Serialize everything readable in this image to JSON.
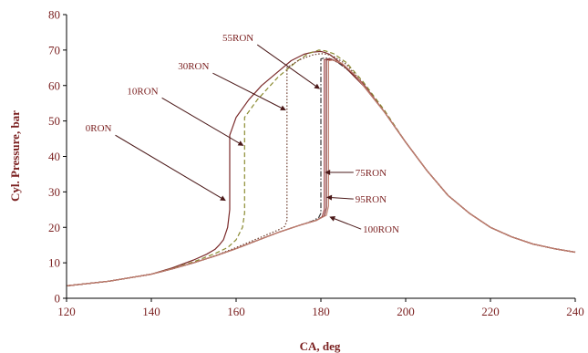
{
  "chart_data": {
    "type": "line",
    "title": "",
    "xlabel": "CA, deg",
    "ylabel": "Cyl. Pressure, bar",
    "xlim": [
      120,
      240
    ],
    "ylim": [
      0,
      80
    ],
    "xticks": [
      120,
      140,
      160,
      180,
      200,
      220,
      240
    ],
    "yticks": [
      0,
      10,
      20,
      30,
      40,
      50,
      60,
      70,
      80
    ],
    "grid": false,
    "legend": "none",
    "colors": {
      "text": "#7a1f1f",
      "axis": "#000000",
      "arrow": "#4a1818",
      "curve_dark": "#7a2a2a",
      "curve_mid": "#a04a4a",
      "curve_light": "#c08070",
      "curve_dash": "#8a8a30"
    },
    "series": [
      {
        "label": "0RON",
        "style": "solid",
        "color": "#7a2a2a",
        "x": [
          120,
          130,
          140,
          145,
          150,
          153,
          155,
          156,
          157,
          158,
          158.5,
          158.5,
          160,
          163,
          166,
          170,
          173,
          176,
          178,
          180,
          181,
          182,
          185,
          190,
          195,
          200,
          205,
          210,
          215,
          220,
          225,
          230,
          235,
          240
        ],
        "y": [
          3.5,
          4.8,
          6.8,
          8.6,
          10.8,
          12.4,
          13.8,
          15,
          16.5,
          20,
          25,
          46,
          51,
          56,
          60,
          64,
          67,
          68.8,
          69.4,
          69.6,
          69.3,
          68.8,
          66,
          60,
          52.5,
          44,
          36,
          29,
          24,
          20,
          17.3,
          15.3,
          14,
          13
        ]
      },
      {
        "label": "10RON",
        "style": "dashed",
        "color": "#8a8a30",
        "x": [
          120,
          130,
          140,
          145,
          150,
          155,
          158,
          160,
          161.5,
          162,
          162,
          165,
          170,
          174,
          177,
          179.5,
          181,
          183,
          186,
          190,
          195,
          200,
          205,
          210,
          215,
          220,
          225,
          230,
          235,
          240
        ],
        "y": [
          3.5,
          4.8,
          6.8,
          8.4,
          10.3,
          12.6,
          14.3,
          16.5,
          20,
          24,
          51,
          56,
          62.5,
          66.5,
          69,
          70,
          69.8,
          69,
          66.5,
          61,
          53,
          44,
          36,
          29,
          24,
          20,
          17.3,
          15.3,
          14,
          13
        ]
      },
      {
        "label": "30RON",
        "style": "dotted",
        "color": "#6a3a2a",
        "x": [
          120,
          130,
          140,
          145,
          150,
          155,
          160,
          165,
          168,
          170,
          171.5,
          172,
          172,
          175,
          178,
          180,
          181.5,
          183,
          186,
          190,
          195,
          200,
          205,
          210,
          215,
          220,
          225,
          230,
          235,
          240
        ],
        "y": [
          3.5,
          4.8,
          6.8,
          8.3,
          10,
          12,
          14.3,
          16.8,
          18.3,
          19.3,
          20.3,
          22,
          65,
          67.3,
          68.6,
          69,
          68.8,
          68.2,
          66,
          60.5,
          52.5,
          44,
          36,
          29,
          24,
          20,
          17.3,
          15.3,
          14,
          13
        ]
      },
      {
        "label": "55RON",
        "style": "dashdot",
        "color": "#3a3a3a",
        "x": [
          120,
          130,
          140,
          145,
          150,
          155,
          160,
          165,
          170,
          175,
          178,
          179.5,
          180,
          180,
          181,
          182,
          184,
          187,
          190,
          195,
          200,
          205,
          210,
          215,
          220,
          225,
          230,
          235,
          240
        ],
        "y": [
          3.5,
          4.8,
          6.8,
          8.3,
          10,
          11.9,
          14,
          16.3,
          18.6,
          20.6,
          21.8,
          22.8,
          24,
          67.5,
          67.8,
          67.6,
          66.5,
          63.8,
          60.5,
          52.5,
          44,
          36,
          29,
          24,
          20,
          17.3,
          15.3,
          14,
          13
        ]
      },
      {
        "label": "75RON",
        "style": "solid",
        "color": "#a04a4a",
        "x": [
          120,
          130,
          140,
          145,
          150,
          155,
          160,
          165,
          170,
          175,
          179,
          180.3,
          180.8,
          180.8,
          182,
          184,
          187,
          190,
          195,
          200,
          205,
          210,
          215,
          220,
          225,
          230,
          235,
          240
        ],
        "y": [
          3.5,
          4.8,
          6.8,
          8.3,
          10,
          11.9,
          14,
          16.3,
          18.6,
          20.6,
          22,
          23,
          25,
          67.3,
          67.6,
          66.8,
          64,
          60.5,
          52.5,
          44,
          36,
          29,
          24,
          20,
          17.3,
          15.3,
          14,
          13
        ]
      },
      {
        "label": "95RON",
        "style": "solid",
        "color": "#7a2a2a",
        "x": [
          120,
          130,
          140,
          145,
          150,
          155,
          160,
          165,
          170,
          175,
          179,
          180.8,
          181.3,
          181.3,
          182.5,
          185,
          188,
          190,
          195,
          200,
          205,
          210,
          215,
          220,
          225,
          230,
          235,
          240
        ],
        "y": [
          3.5,
          4.8,
          6.8,
          8.3,
          10,
          11.9,
          14,
          16.3,
          18.6,
          20.6,
          22,
          23.2,
          25.5,
          67.2,
          67.4,
          66,
          62.6,
          60,
          52.5,
          44,
          36,
          29,
          24,
          20,
          17.3,
          15.3,
          14,
          13
        ]
      },
      {
        "label": "100RON",
        "style": "solid",
        "color": "#c08070",
        "x": [
          120,
          130,
          140,
          145,
          150,
          155,
          160,
          165,
          170,
          175,
          179,
          181.3,
          181.8,
          181.8,
          183,
          185,
          188,
          190,
          195,
          200,
          205,
          210,
          215,
          220,
          225,
          230,
          235,
          240
        ],
        "y": [
          3.5,
          4.8,
          6.8,
          8.3,
          10,
          11.9,
          14,
          16.3,
          18.6,
          20.6,
          22,
          23.4,
          26,
          67,
          67.2,
          66.2,
          63,
          60,
          52.5,
          44,
          36,
          29,
          24,
          20,
          17.3,
          15.3,
          14,
          13
        ]
      }
    ],
    "annotations": [
      {
        "text": "0RON",
        "text_at": [
          131.5,
          46
        ],
        "arrow_to": [
          157.6,
          27.5
        ]
      },
      {
        "text": "10RON",
        "text_at": [
          142.5,
          56.5
        ],
        "arrow_to": [
          161.8,
          43
        ]
      },
      {
        "text": "30RON",
        "text_at": [
          154.5,
          63.5
        ],
        "arrow_to": [
          171.8,
          53
        ]
      },
      {
        "text": "55RON",
        "text_at": [
          165,
          71.5
        ],
        "arrow_to": [
          179.8,
          59
        ]
      },
      {
        "text": "75RON",
        "text_at": [
          187.7,
          35.5
        ],
        "arrow_to": [
          180.9,
          35.5
        ]
      },
      {
        "text": "95RON",
        "text_at": [
          187.7,
          28
        ],
        "arrow_to": [
          181.3,
          28.5
        ]
      },
      {
        "text": "100RON",
        "text_at": [
          189.5,
          19.5
        ],
        "arrow_to": [
          182,
          23
        ]
      }
    ]
  }
}
